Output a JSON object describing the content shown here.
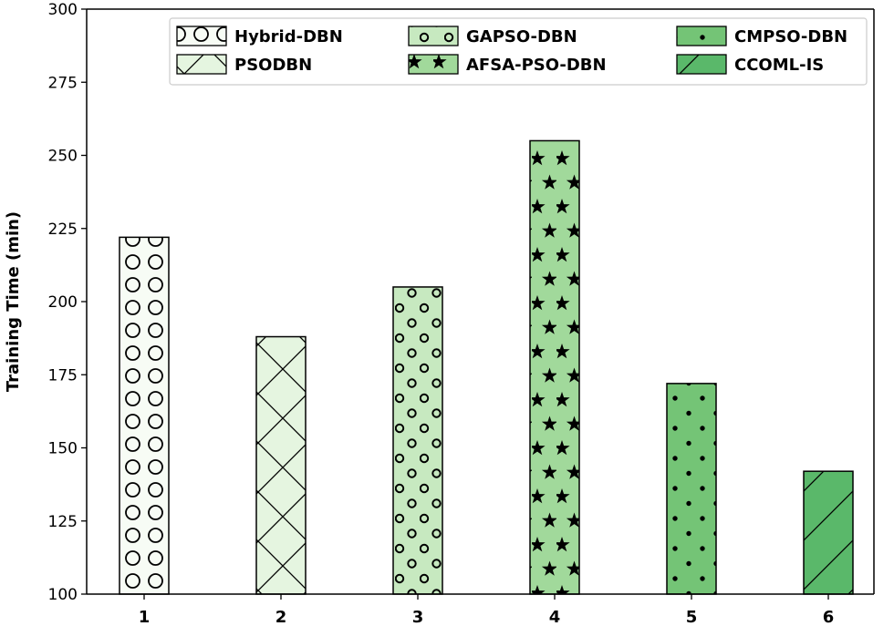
{
  "chart_data": {
    "type": "bar",
    "categories": [
      "1",
      "2",
      "3",
      "4",
      "5",
      "6"
    ],
    "values": [
      222,
      188,
      205,
      255,
      172,
      142
    ],
    "series_names": [
      "Hybrid-DBN",
      "PSODBN",
      "GAPSO-DBN",
      "AFSA-PSO-DBN",
      "CMPSO-DBN",
      "CCOML-IS"
    ],
    "title": "",
    "xlabel": "",
    "ylabel": "Training Time (min)",
    "ylim": [
      100,
      300
    ],
    "yticks": [
      100,
      125,
      150,
      175,
      200,
      225,
      250,
      275,
      300
    ],
    "grid": false,
    "legend_position": "top-center",
    "colors": [
      "#f7fcf5",
      "#e5f5e0",
      "#c7e9c0",
      "#a1d99b",
      "#74c476",
      "#5ab86a"
    ],
    "hatches": [
      "circles",
      "cross",
      "small-circles",
      "stars",
      "dots",
      "diagonal"
    ]
  }
}
